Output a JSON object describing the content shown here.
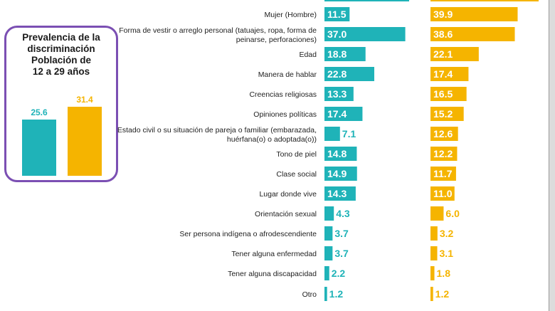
{
  "colors": {
    "series_a": "#1fb3b8",
    "series_b": "#f5b400",
    "box_border": "#7b4fb3"
  },
  "prevalence": {
    "title": "Prevalencia de la\ndiscriminación\nPoblación de\n12 a 29 años",
    "values": [
      "25.6",
      "31.4"
    ]
  },
  "chart_data": {
    "type": "bar",
    "orientation": "horizontal",
    "categories": [
      "",
      "Mujer (Hombre)",
      "Forma de vestir o arreglo personal (tatuajes, ropa, forma de peinarse, perforaciones)",
      "Edad",
      "Manera de hablar",
      "Creencias religiosas",
      "Opiniones políticas",
      "Estado civil o su situación de pareja o familiar (embarazada, huérfana(o) o adoptada(o))",
      "Tono de piel",
      "Clase social",
      "Lugar donde vive",
      "Orientación sexual",
      "Ser persona indígena o afrodescendiente",
      "Tener alguna enfermedad",
      "Tener alguna discapacidad",
      "Otro"
    ],
    "category_lines": [
      [
        ""
      ],
      [
        "Mujer (Hombre)"
      ],
      [
        "Forma de vestir o arreglo personal (tatuajes, ropa, forma de",
        "peinarse, perforaciones)"
      ],
      [
        "Edad"
      ],
      [
        "Manera de hablar"
      ],
      [
        "Creencias religiosas"
      ],
      [
        "Opiniones políticas"
      ],
      [
        "Estado civil o su situación de pareja o familiar (embarazada,",
        "huérfana(o) o adoptada(o))"
      ],
      [
        "Tono de piel"
      ],
      [
        "Clase social"
      ],
      [
        "Lugar donde vive"
      ],
      [
        "Orientación sexual"
      ],
      [
        "Ser persona indígena o afrodescendiente"
      ],
      [
        "Tener alguna enfermedad"
      ],
      [
        "Tener alguna discapacidad"
      ],
      [
        "Otro"
      ]
    ],
    "series": [
      {
        "values": [
          null,
          11.5,
          37.0,
          18.8,
          22.8,
          13.3,
          17.4,
          7.1,
          14.8,
          14.9,
          14.3,
          4.3,
          3.7,
          3.7,
          2.2,
          1.2
        ]
      },
      {
        "values": [
          null,
          39.9,
          38.6,
          22.1,
          17.4,
          16.5,
          15.2,
          12.6,
          12.2,
          11.7,
          11.0,
          6.0,
          3.2,
          3.1,
          1.8,
          1.2
        ]
      }
    ],
    "labels": [
      [
        "",
        "11.5",
        "37.0",
        "18.8",
        "22.8",
        "13.3",
        "17.4",
        "7.1",
        "14.8",
        "14.9",
        "14.3",
        "4.3",
        "3.7",
        "3.7",
        "2.2",
        "1.2"
      ],
      [
        "",
        "39.9",
        "38.6",
        "22.1",
        "17.4",
        "16.5",
        "15.2",
        "12.6",
        "12.2",
        "11.7",
        "11.0",
        "6.0",
        "3.2",
        "3.1",
        "1.8",
        "1.2"
      ]
    ]
  }
}
